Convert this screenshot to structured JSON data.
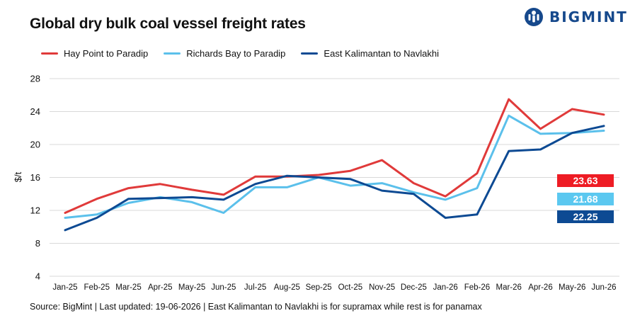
{
  "header": {
    "title": "Global dry bulk coal vessel freight rates",
    "brand": "BIGMINT"
  },
  "footer": {
    "source": "Source: BigMint | Last updated: 19-06-2026 | East Kalimantan to Navlakhi is for supramax while rest is for panamax"
  },
  "colors": {
    "hay_point": "#e03a3a",
    "richards_bay": "#5bc0eb",
    "east_kalimantan": "#0d4a93",
    "grid": "#d9d9d9",
    "label_red": "#ee1c24",
    "label_lightblue": "#5bc8f0",
    "label_darkblue": "#0d4a93"
  },
  "chart_data": {
    "type": "line",
    "title": "Global dry bulk coal vessel freight rates",
    "ylabel": "$/t",
    "xlabel": "",
    "ylim": [
      4,
      28
    ],
    "yticks": [
      4,
      8,
      12,
      16,
      20,
      24,
      28
    ],
    "grid": "horizontal",
    "legend": "top-left",
    "categories": [
      "Jan-25",
      "Feb-25",
      "Mar-25",
      "Apr-25",
      "May-25",
      "Jun-25",
      "Jul-25",
      "Aug-25",
      "Sep-25",
      "Oct-25",
      "Nov-25",
      "Dec-25",
      "Jan-26",
      "Feb-26",
      "Mar-26",
      "Apr-26",
      "May-26",
      "Jun-26"
    ],
    "series": [
      {
        "name": "Hay Point to Paradip",
        "color": "#e03a3a",
        "values": [
          11.7,
          13.4,
          14.7,
          15.2,
          14.5,
          13.9,
          16.1,
          16.1,
          16.3,
          16.8,
          18.1,
          15.3,
          13.7,
          16.5,
          25.5,
          21.9,
          24.3,
          23.63
        ],
        "end_label": "23.63",
        "end_label_color": "#ee1c24"
      },
      {
        "name": "Richards Bay to Paradip",
        "color": "#5bc0eb",
        "values": [
          11.1,
          11.5,
          12.9,
          13.6,
          13.0,
          11.7,
          14.8,
          14.8,
          16.0,
          15.0,
          15.3,
          14.2,
          13.3,
          14.7,
          23.5,
          21.3,
          21.4,
          21.68
        ],
        "end_label": "21.68",
        "end_label_color": "#5bc8f0"
      },
      {
        "name": "East Kalimantan to Navlakhi",
        "color": "#0d4a93",
        "values": [
          9.6,
          11.1,
          13.4,
          13.5,
          13.6,
          13.3,
          15.2,
          16.2,
          16.0,
          15.8,
          14.4,
          14.0,
          11.1,
          11.5,
          19.2,
          19.4,
          21.4,
          22.25
        ],
        "end_label": "22.25",
        "end_label_color": "#0d4a93"
      }
    ]
  }
}
